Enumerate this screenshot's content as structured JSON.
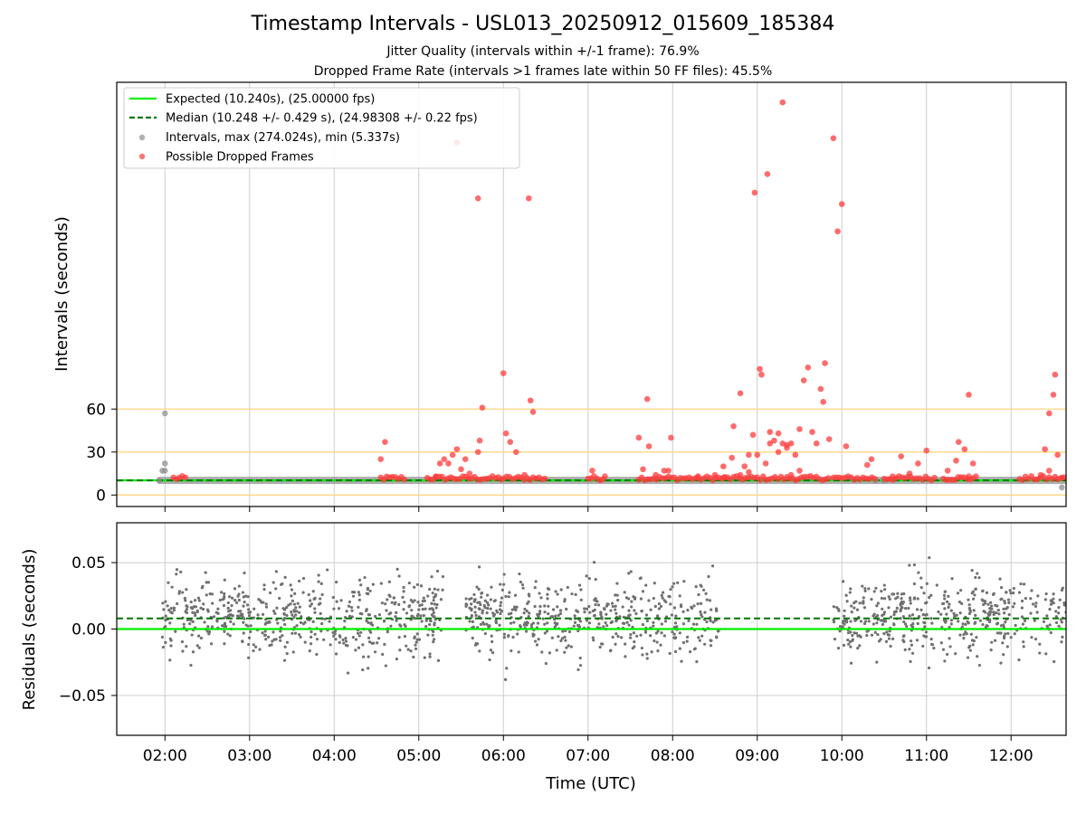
{
  "title": "Timestamp Intervals - USL013_20250912_015609_185384",
  "subtitle_1": "Jitter Quality (intervals within +/-1 frame): 76.9%",
  "subtitle_2": "Dropped Frame Rate (intervals >1 frames late within 50 FF files): 45.5%",
  "chart_data": [
    {
      "type": "scatter",
      "panel": "intervals",
      "xlabel": "",
      "ylabel": "Intervals (seconds)",
      "xlim": [
        1.43,
        12.65
      ],
      "ylim": [
        -8,
        288
      ],
      "yticks": [
        0,
        30,
        60
      ],
      "ytick_labels": [
        "0",
        "30",
        "60"
      ],
      "reference_lines": [
        0,
        30,
        60
      ],
      "reference_color": "#ffd580",
      "legend_position": "upper-left",
      "legend": [
        {
          "label": "Expected (10.240s), (25.00000 fps)",
          "style": "solid-line",
          "color": "#00ee00"
        },
        {
          "label": "Median (10.248 +/- 0.429 s), (24.98308 +/- 0.22 fps)",
          "style": "dashed-line",
          "color": "#007700"
        },
        {
          "label": "Intervals, max (274.024s), min (5.337s)",
          "style": "marker",
          "color": "#909090"
        },
        {
          "label": "Possible Dropped Frames",
          "style": "marker",
          "color": "#ff3b3b"
        }
      ],
      "expected": 10.24,
      "median": 10.248,
      "max_interval": 274.024,
      "min_interval": 5.337,
      "series": [
        {
          "name": "Intervals",
          "color": "#909090",
          "points": [
            [
              1.93,
              10.2
            ],
            [
              1.97,
              17
            ],
            [
              2.0,
              22
            ],
            [
              2.0,
              57
            ],
            [
              2.0,
              17
            ],
            [
              12.6,
              5.3
            ],
            [
              10.4,
              10
            ],
            [
              10.5,
              10
            ]
          ]
        },
        {
          "name": "Possible Dropped Frames",
          "color": "#ff3b3b",
          "points": [
            [
              4.6,
              37
            ],
            [
              4.55,
              25
            ],
            [
              5.25,
              22
            ],
            [
              5.3,
              25
            ],
            [
              5.35,
              22
            ],
            [
              5.4,
              28
            ],
            [
              5.45,
              246
            ],
            [
              5.45,
              32
            ],
            [
              5.5,
              18
            ],
            [
              5.55,
              25
            ],
            [
              5.7,
              30
            ],
            [
              5.72,
              38
            ],
            [
              5.7,
              207
            ],
            [
              5.75,
              61
            ],
            [
              6.0,
              85
            ],
            [
              6.03,
              43
            ],
            [
              6.08,
              37
            ],
            [
              6.15,
              30
            ],
            [
              6.3,
              207
            ],
            [
              6.32,
              66
            ],
            [
              6.35,
              58
            ],
            [
              7.05,
              17
            ],
            [
              7.2,
              13
            ],
            [
              7.6,
              40
            ],
            [
              7.65,
              18
            ],
            [
              7.7,
              67
            ],
            [
              7.72,
              34
            ],
            [
              7.8,
              14
            ],
            [
              7.9,
              17
            ],
            [
              7.95,
              17
            ],
            [
              7.98,
              40
            ],
            [
              8.3,
              12
            ],
            [
              8.5,
              14
            ],
            [
              8.6,
              20
            ],
            [
              8.7,
              26
            ],
            [
              8.72,
              48
            ],
            [
              8.8,
              71
            ],
            [
              8.85,
              20
            ],
            [
              8.9,
              28
            ],
            [
              8.95,
              42
            ],
            [
              8.97,
              211
            ],
            [
              9.0,
              28
            ],
            [
              9.03,
              88
            ],
            [
              9.05,
              84
            ],
            [
              9.1,
              22
            ],
            [
              9.12,
              224
            ],
            [
              9.15,
              44
            ],
            [
              9.2,
              38
            ],
            [
              9.25,
              30
            ],
            [
              9.3,
              36
            ],
            [
              9.35,
              35
            ],
            [
              9.4,
              36
            ],
            [
              9.45,
              28
            ],
            [
              9.5,
              46
            ],
            [
              9.55,
              80
            ],
            [
              9.6,
              89
            ],
            [
              9.65,
              44
            ],
            [
              9.7,
              36
            ],
            [
              9.75,
              74
            ],
            [
              9.78,
              65
            ],
            [
              9.8,
              92
            ],
            [
              9.85,
              39
            ],
            [
              9.9,
              249
            ],
            [
              9.95,
              184
            ],
            [
              10.0,
              203
            ],
            [
              10.05,
              34
            ],
            [
              10.3,
              21
            ],
            [
              10.35,
              25
            ],
            [
              10.7,
              27
            ],
            [
              10.8,
              15
            ],
            [
              10.9,
              22
            ],
            [
              11.0,
              31
            ],
            [
              11.25,
              17
            ],
            [
              11.35,
              24
            ],
            [
              11.38,
              37
            ],
            [
              11.45,
              32
            ],
            [
              11.5,
              70
            ],
            [
              11.55,
              22
            ],
            [
              12.4,
              32
            ],
            [
              12.45,
              57
            ],
            [
              12.5,
              70
            ],
            [
              12.52,
              84
            ],
            [
              12.55,
              28
            ],
            [
              12.45,
              17
            ],
            [
              12.35,
              14
            ],
            [
              5.6,
              15
            ],
            [
              5.2,
              13
            ],
            [
              6.25,
              14
            ],
            [
              9.4,
              14
            ],
            [
              9.5,
              17
            ],
            [
              8.9,
              16
            ],
            [
              8.8,
              14
            ],
            [
              8.6,
              12
            ],
            [
              9.3,
              274
            ],
            [
              9.15,
              36
            ],
            [
              9.25,
              43
            ],
            [
              9.35,
              33
            ],
            [
              10.6,
              13
            ],
            [
              11.5,
              13
            ],
            [
              12.6,
              12
            ]
          ]
        }
      ]
    },
    {
      "type": "scatter",
      "panel": "residuals",
      "xlabel": "Time (UTC)",
      "ylabel": "Residuals (seconds)",
      "xlim": [
        1.43,
        12.65
      ],
      "ylim": [
        -0.08,
        0.08
      ],
      "yticks": [
        -0.05,
        0.0,
        0.05
      ],
      "ytick_labels": [
        "−0.05",
        "0.00",
        "0.05"
      ],
      "xticks": [
        2,
        3,
        4,
        5,
        6,
        7,
        8,
        9,
        10,
        11,
        12
      ],
      "xtick_labels": [
        "02:00",
        "03:00",
        "04:00",
        "05:00",
        "06:00",
        "07:00",
        "08:00",
        "09:00",
        "10:00",
        "11:00",
        "12:00"
      ],
      "expected_residual": 0.0,
      "median_residual": 0.008,
      "point_color": "#707070",
      "segments": [
        [
          1.95,
          5.3
        ],
        [
          5.55,
          8.55
        ],
        [
          9.9,
          12.65
        ]
      ],
      "n_points": 1500
    }
  ]
}
